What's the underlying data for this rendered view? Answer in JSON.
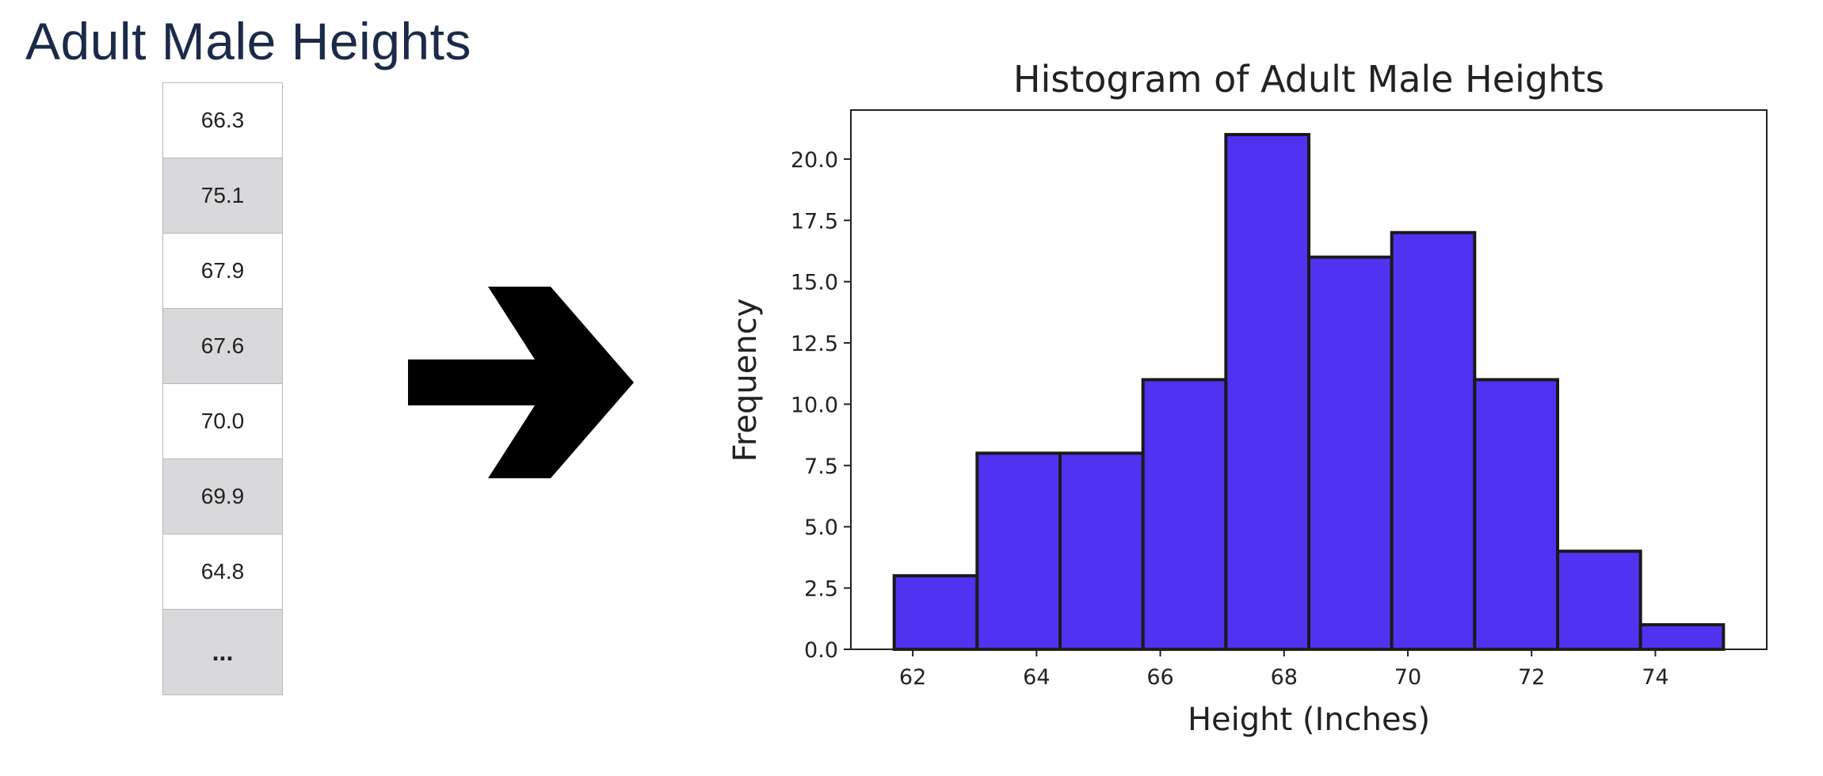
{
  "left_panel": {
    "title": "Adult Male Heights",
    "values": [
      "66.3",
      "75.1",
      "67.9",
      "67.6",
      "70.0",
      "69.9",
      "64.8"
    ],
    "ellipsis": "..."
  },
  "arrow": {
    "icon": "right-arrow-icon",
    "color": "#000000"
  },
  "chart_data": {
    "type": "bar",
    "subtype": "histogram",
    "title": "Histogram of Adult Male Heights",
    "xlabel": "Height (Inches)",
    "ylabel": "Frequency",
    "bin_edges": [
      61.7,
      63.04,
      64.38,
      65.72,
      67.06,
      68.4,
      69.74,
      71.08,
      72.42,
      73.76,
      75.1
    ],
    "values": [
      3,
      8,
      8,
      11,
      21,
      16,
      17,
      11,
      4,
      1
    ],
    "xlim": [
      61.0,
      75.8
    ],
    "ylim": [
      0,
      22
    ],
    "x_ticks": [
      62,
      64,
      66,
      68,
      70,
      72,
      74
    ],
    "x_tick_labels": [
      "62",
      "64",
      "66",
      "68",
      "70",
      "72",
      "74"
    ],
    "y_ticks": [
      0,
      2.5,
      5,
      7.5,
      10,
      12.5,
      15,
      17.5,
      20
    ],
    "y_tick_labels": [
      "0.0",
      "2.5",
      "5.0",
      "7.5",
      "10.0",
      "12.5",
      "15.0",
      "17.5",
      "20.0"
    ],
    "bar_color": "#5033f0",
    "edge_color": "#1a1a1a",
    "grid": false,
    "legend": "none"
  }
}
